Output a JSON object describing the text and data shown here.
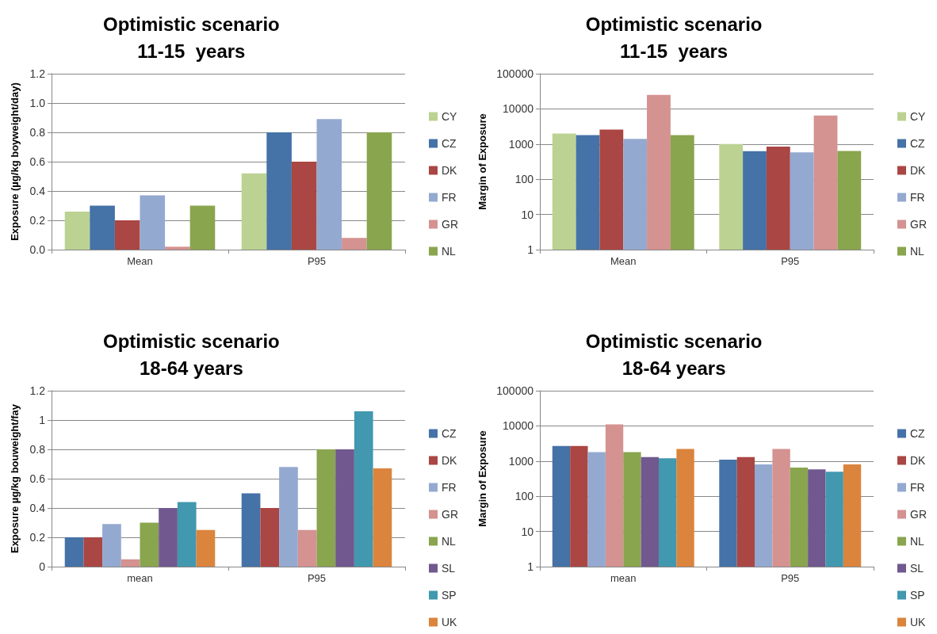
{
  "chart_data": [
    {
      "type": "bar",
      "title": "Optimistic scenario\n11-15  years",
      "ylabel": "Exposure (µg/kg boyweight/day)",
      "categories": [
        "Mean",
        "P95"
      ],
      "series": [
        {
          "name": "CY",
          "color": "#bcd292",
          "values": [
            0.26,
            0.52
          ]
        },
        {
          "name": "CZ",
          "color": "#4572a7",
          "values": [
            0.3,
            0.8
          ]
        },
        {
          "name": "DK",
          "color": "#aa4643",
          "values": [
            0.2,
            0.6
          ]
        },
        {
          "name": "FR",
          "color": "#94a9d0",
          "values": [
            0.37,
            0.89
          ]
        },
        {
          "name": "GR",
          "color": "#d49290",
          "values": [
            0.02,
            0.08
          ]
        },
        {
          "name": "NL",
          "color": "#89a54e",
          "values": [
            0.3,
            0.8
          ]
        }
      ],
      "ylim": [
        0,
        1.2
      ],
      "yticks": [
        {
          "value": 0,
          "label": "0.0"
        },
        {
          "value": 0.2,
          "label": "0.2"
        },
        {
          "value": 0.4,
          "label": "0.4"
        },
        {
          "value": 0.6,
          "label": "0.6"
        },
        {
          "value": 0.8,
          "label": "0.8"
        },
        {
          "value": 1,
          "label": "1.0"
        },
        {
          "value": 1.2,
          "label": "1.2"
        }
      ],
      "grid": "y",
      "legend": "right"
    },
    {
      "type": "bar",
      "title": "Optimistic scenario\n11-15  years",
      "ylabel": "Margin of Exposure",
      "categories": [
        "Mean",
        "P95"
      ],
      "series": [
        {
          "name": "CY",
          "color": "#bcd292",
          "values": [
            2000,
            1000
          ]
        },
        {
          "name": "CZ",
          "color": "#4572a7",
          "values": [
            1800,
            630
          ]
        },
        {
          "name": "DK",
          "color": "#aa4643",
          "values": [
            2600,
            850
          ]
        },
        {
          "name": "FR",
          "color": "#94a9d0",
          "values": [
            1400,
            580
          ]
        },
        {
          "name": "GR",
          "color": "#d49290",
          "values": [
            25000,
            6500
          ]
        },
        {
          "name": "NL",
          "color": "#89a54e",
          "values": [
            1800,
            640
          ]
        }
      ],
      "log": "y",
      "ylim": [
        1,
        100000
      ],
      "yticks": [
        1,
        10,
        100,
        1000,
        10000,
        100000
      ],
      "grid": "y",
      "legend": "right"
    },
    {
      "type": "bar",
      "title": "Optimistic scenario\n18-64 years",
      "ylabel": "Exposure µg/kg bouweight/fay",
      "categories": [
        "mean",
        "P95"
      ],
      "series": [
        {
          "name": "CZ",
          "color": "#4572a7",
          "values": [
            0.2,
            0.5
          ]
        },
        {
          "name": "DK",
          "color": "#aa4643",
          "values": [
            0.2,
            0.4
          ]
        },
        {
          "name": "FR",
          "color": "#94a9d0",
          "values": [
            0.29,
            0.68
          ]
        },
        {
          "name": "GR",
          "color": "#d49290",
          "values": [
            0.05,
            0.25
          ]
        },
        {
          "name": "NL",
          "color": "#89a54e",
          "values": [
            0.3,
            0.8
          ]
        },
        {
          "name": "SL",
          "color": "#71588f",
          "values": [
            0.4,
            0.8
          ]
        },
        {
          "name": "SP",
          "color": "#4198af",
          "values": [
            0.44,
            1.06
          ]
        },
        {
          "name": "UK",
          "color": "#db843d",
          "values": [
            0.25,
            0.67
          ]
        }
      ],
      "ylim": [
        0,
        1.2
      ],
      "yticks": [
        0,
        0.2,
        0.4,
        0.6,
        0.8,
        1,
        1.2
      ],
      "grid": "y",
      "legend": "right"
    },
    {
      "type": "bar",
      "title": "Optimistic scenario\n18-64 years",
      "ylabel": "Margin of Exposure",
      "categories": [
        "mean",
        "P95"
      ],
      "series": [
        {
          "name": "CZ",
          "color": "#4572a7",
          "values": [
            2700,
            1100
          ]
        },
        {
          "name": "DK",
          "color": "#aa4643",
          "values": [
            2700,
            1300
          ]
        },
        {
          "name": "FR",
          "color": "#94a9d0",
          "values": [
            1800,
            800
          ]
        },
        {
          "name": "GR",
          "color": "#d49290",
          "values": [
            11000,
            2200
          ]
        },
        {
          "name": "NL",
          "color": "#89a54e",
          "values": [
            1800,
            650
          ]
        },
        {
          "name": "SL",
          "color": "#71588f",
          "values": [
            1300,
            580
          ]
        },
        {
          "name": "SP",
          "color": "#4198af",
          "values": [
            1200,
            500
          ]
        },
        {
          "name": "UK",
          "color": "#db843d",
          "values": [
            2200,
            800
          ]
        }
      ],
      "log": "y",
      "ylim": [
        1,
        100000
      ],
      "yticks": [
        1,
        10,
        100,
        1000,
        10000,
        100000
      ],
      "grid": "y",
      "legend": "right"
    }
  ]
}
